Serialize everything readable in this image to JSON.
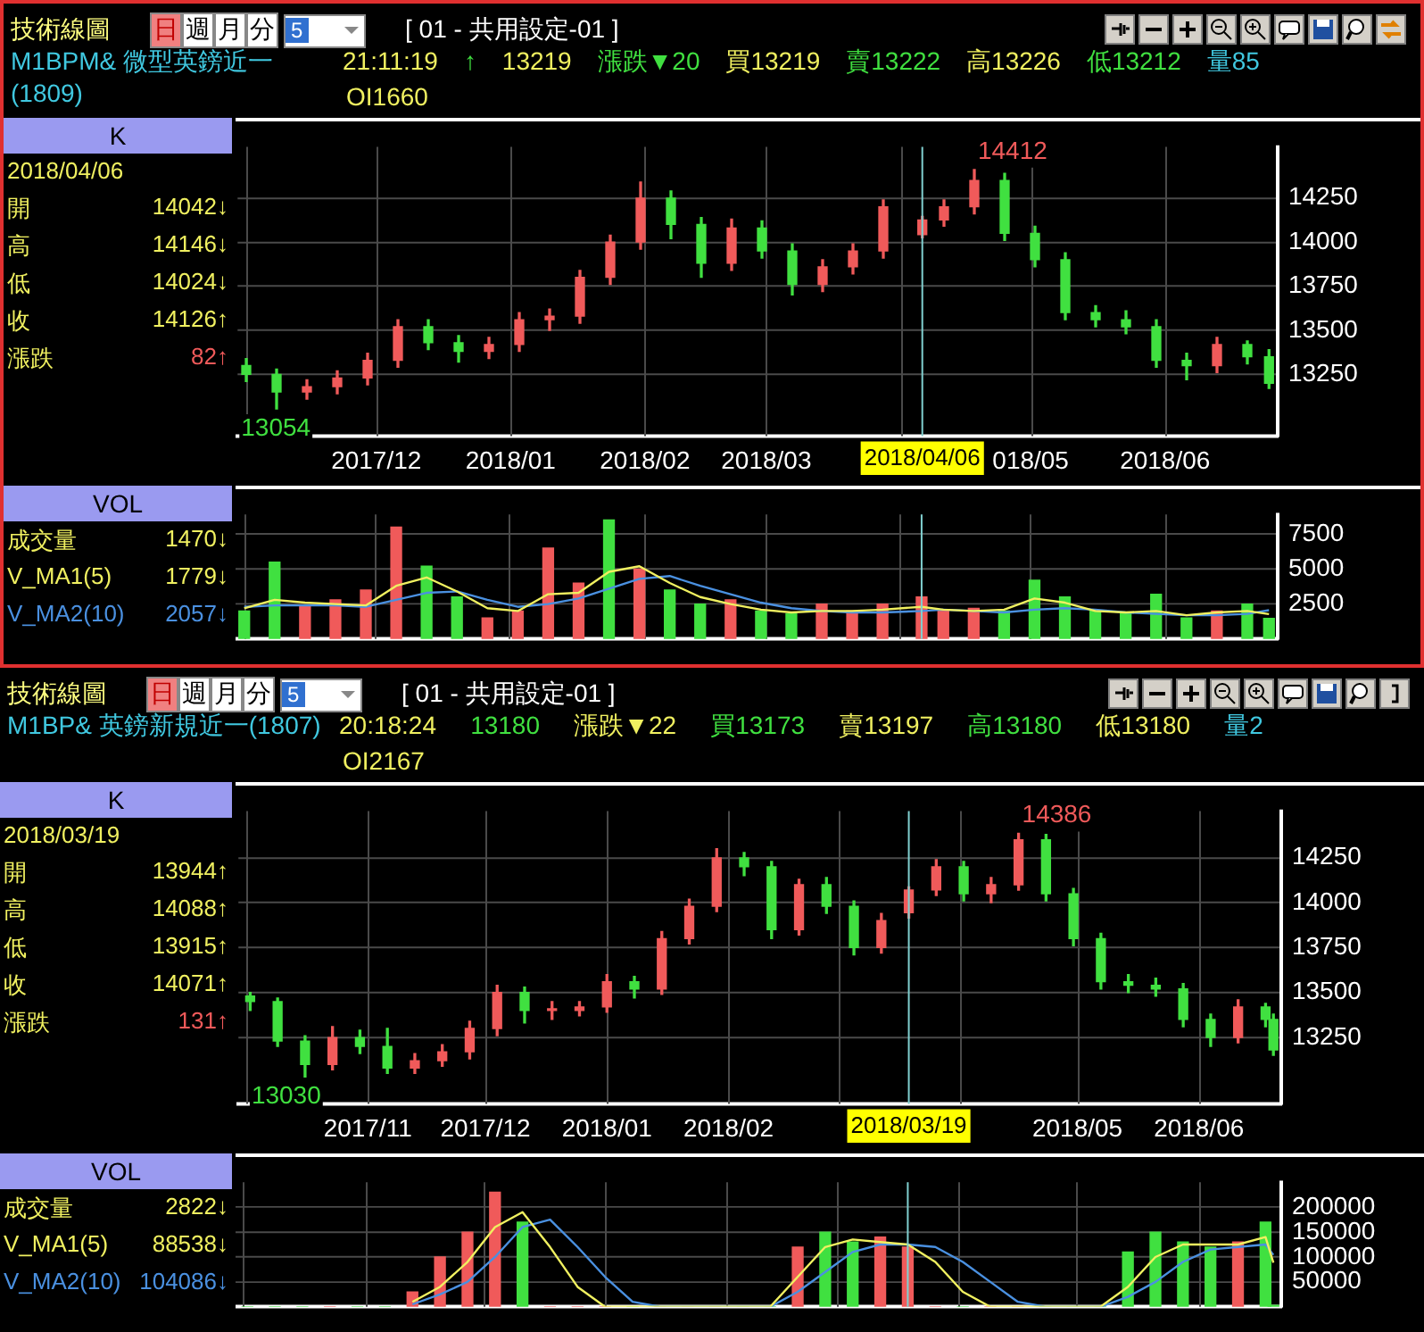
{
  "chart_data": [
    {
      "type": "other",
      "title": "技術線圖",
      "subtitle": "M1BPM&  微型英鎊近一(1809)",
      "annotations": [
        "日",
        "週",
        "月",
        "分",
        "5",
        "[ 01 - 共用設定-01 ]",
        "21:11:19",
        "↑",
        "13219",
        "漲跌▼20",
        "買13219",
        "賣13222",
        "高13226",
        "低13212",
        "量85",
        "OI1660"
      ]
    },
    {
      "type": "candlestick",
      "title": "K",
      "grid": true,
      "x": [
        "2017-11-01",
        "2017-11-08",
        "2017-11-15",
        "2017-11-22",
        "2017-11-29",
        "2017-12-06",
        "2017-12-13",
        "2017-12-20",
        "2017-12-27",
        "2018-01-03",
        "2018-01-10",
        "2018-01-17",
        "2018-01-24",
        "2018-01-31",
        "2018-02-07",
        "2018-02-14",
        "2018-02-21",
        "2018-02-28",
        "2018-03-07",
        "2018-03-14",
        "2018-03-21",
        "2018-03-28",
        "2018-04-06",
        "2018-04-11",
        "2018-04-18",
        "2018-04-25",
        "2018-05-02",
        "2018-05-09",
        "2018-05-16",
        "2018-05-23",
        "2018-05-30",
        "2018-06-06",
        "2018-06-13",
        "2018-06-20",
        "2018-06-25"
      ],
      "ohlc": [
        [
          13300,
          13340,
          13210,
          13250
        ],
        [
          13250,
          13280,
          13054,
          13150
        ],
        [
          13150,
          13220,
          13110,
          13180
        ],
        [
          13180,
          13270,
          13140,
          13230
        ],
        [
          13230,
          13370,
          13190,
          13330
        ],
        [
          13330,
          13560,
          13290,
          13520
        ],
        [
          13520,
          13560,
          13390,
          13430
        ],
        [
          13430,
          13470,
          13320,
          13380
        ],
        [
          13380,
          13460,
          13340,
          13420
        ],
        [
          13420,
          13600,
          13380,
          13560
        ],
        [
          13560,
          13620,
          13500,
          13580
        ],
        [
          13580,
          13840,
          13540,
          13800
        ],
        [
          13800,
          14040,
          13760,
          14000
        ],
        [
          14000,
          14340,
          13960,
          14250
        ],
        [
          14250,
          14290,
          14020,
          14100
        ],
        [
          14100,
          14140,
          13800,
          13880
        ],
        [
          13880,
          14130,
          13840,
          14080
        ],
        [
          14080,
          14120,
          13910,
          13950
        ],
        [
          13950,
          13990,
          13700,
          13760
        ],
        [
          13760,
          13900,
          13720,
          13860
        ],
        [
          13860,
          13990,
          13820,
          13950
        ],
        [
          13950,
          14240,
          13910,
          14200
        ],
        [
          14042,
          14146,
          14024,
          14126
        ],
        [
          14126,
          14240,
          14090,
          14200
        ],
        [
          14200,
          14412,
          14160,
          14350
        ],
        [
          14350,
          14390,
          14010,
          14050
        ],
        [
          14050,
          14090,
          13860,
          13900
        ],
        [
          13900,
          13940,
          13560,
          13600
        ],
        [
          13600,
          13640,
          13520,
          13560
        ],
        [
          13560,
          13610,
          13480,
          13520
        ],
        [
          13520,
          13560,
          13290,
          13330
        ],
        [
          13330,
          13370,
          13220,
          13300
        ],
        [
          13300,
          13460,
          13260,
          13420
        ],
        [
          13420,
          13440,
          13310,
          13350
        ],
        [
          13350,
          13390,
          13170,
          13200
        ]
      ],
      "colors": [
        "#40e040",
        "#40e040",
        "#f05a5a",
        "#f05a5a",
        "#f05a5a",
        "#f05a5a",
        "#40e040",
        "#40e040",
        "#f05a5a",
        "#f05a5a",
        "#f05a5a",
        "#f05a5a",
        "#f05a5a",
        "#f05a5a",
        "#40e040",
        "#40e040",
        "#f05a5a",
        "#40e040",
        "#40e040",
        "#f05a5a",
        "#f05a5a",
        "#f05a5a",
        "#f05a5a",
        "#f05a5a",
        "#f05a5a",
        "#40e040",
        "#40e040",
        "#40e040",
        "#40e040",
        "#40e040",
        "#40e040",
        "#40e040",
        "#f05a5a",
        "#40e040",
        "#40e040"
      ],
      "xlim": [
        "2017-10-30",
        "2018-06-27"
      ],
      "xticks": [
        {
          "value": "2017-11-01",
          "label": null
        },
        {
          "value": "2017-12-01",
          "label": "2017/12"
        },
        {
          "value": "2018-01-01",
          "label": "2018/01"
        },
        {
          "value": "2018-02-01",
          "label": "2018/02"
        },
        {
          "value": "2018-03-01",
          "label": "2018/03"
        },
        {
          "value": "2018-04-01",
          "label": null
        },
        {
          "value": "2018-05-01",
          "label": "018/05"
        },
        {
          "value": "2018-06-01",
          "label": "2018/06"
        }
      ],
      "ylim": [
        12900,
        14540
      ],
      "yticks": [
        13250,
        13500,
        13750,
        14000,
        14250
      ],
      "ref_lines": [
        {
          "axis": "x",
          "value": "2018-04-06",
          "label": "2018/04/06",
          "color": "#80d0d0"
        }
      ],
      "annotations": [
        "2018/04/06",
        "開",
        "14042↓",
        "高",
        "14146↓",
        "低",
        "14024↓",
        "收",
        "14126↑",
        "漲跌",
        "82↑",
        {
          "text": "14412",
          "x": "2018-04-18",
          "y": 14412
        },
        {
          "text": "13054",
          "x": "2017-11-08",
          "y": 13054
        }
      ]
    },
    {
      "type": "bar",
      "title": "VOL",
      "grid": true,
      "legend": "left",
      "tick_labels": "y",
      "x": [
        "2017-11-01",
        "2017-11-08",
        "2017-11-15",
        "2017-11-22",
        "2017-11-29",
        "2017-12-06",
        "2017-12-13",
        "2017-12-20",
        "2017-12-27",
        "2018-01-03",
        "2018-01-10",
        "2018-01-17",
        "2018-01-24",
        "2018-01-31",
        "2018-02-07",
        "2018-02-14",
        "2018-02-21",
        "2018-02-28",
        "2018-03-07",
        "2018-03-14",
        "2018-03-21",
        "2018-03-28",
        "2018-04-06",
        "2018-04-11",
        "2018-04-18",
        "2018-04-25",
        "2018-05-02",
        "2018-05-09",
        "2018-05-16",
        "2018-05-23",
        "2018-05-30",
        "2018-06-06",
        "2018-06-13",
        "2018-06-20",
        "2018-06-25"
      ],
      "series": [
        {
          "type": "bar",
          "values": [
            2000,
            5500,
            2400,
            2800,
            3500,
            8000,
            5200,
            3000,
            1500,
            2000,
            6500,
            4000,
            8500,
            5000,
            3500,
            2500,
            2800,
            2000,
            1800,
            2500,
            2000,
            2500,
            3000,
            2000,
            2200,
            2000,
            4200,
            3000,
            2000,
            1800,
            3200,
            1500,
            2000,
            2500,
            1470
          ],
          "colors": [
            "#40e040",
            "#40e040",
            "#f05a5a",
            "#f05a5a",
            "#f05a5a",
            "#f05a5a",
            "#40e040",
            "#40e040",
            "#f05a5a",
            "#f05a5a",
            "#f05a5a",
            "#f05a5a",
            "#40e040",
            "#f05a5a",
            "#40e040",
            "#40e040",
            "#f05a5a",
            "#40e040",
            "#40e040",
            "#f05a5a",
            "#f05a5a",
            "#f05a5a",
            "#f05a5a",
            "#f05a5a",
            "#f05a5a",
            "#40e040",
            "#40e040",
            "#40e040",
            "#40e040",
            "#40e040",
            "#40e040",
            "#40e040",
            "#f05a5a",
            "#40e040",
            "#40e040"
          ]
        },
        {
          "name": "V_MA1(5)",
          "type": "line",
          "color": "#f0f060",
          "values": [
            2200,
            2800,
            2600,
            2500,
            2400,
            3800,
            4400,
            3400,
            2200,
            2000,
            3200,
            3300,
            4800,
            5200,
            4000,
            3000,
            2500,
            2100,
            1900,
            2000,
            2000,
            2100,
            2300,
            2100,
            2000,
            2100,
            2900,
            2600,
            2000,
            1900,
            2000,
            1700,
            1900,
            2000,
            1779
          ]
        },
        {
          "name": "V_MA2(10)",
          "type": "line",
          "color": "#4a90e0",
          "values": [
            2300,
            2400,
            2400,
            2400,
            2300,
            2800,
            3300,
            3400,
            2800,
            2300,
            2500,
            2900,
            3600,
            4300,
            4500,
            3800,
            3200,
            2600,
            2200,
            2000,
            1900,
            1900,
            2000,
            2100,
            2000,
            1900,
            2100,
            2200,
            2100,
            1900,
            1800,
            1700,
            1700,
            1800,
            2057
          ]
        }
      ],
      "xlim": [
        "2017-10-30",
        "2018-06-27"
      ],
      "xticks": [
        {
          "value": "2017-11-01",
          "label": null
        },
        {
          "value": "2017-12-01",
          "label": null
        },
        {
          "value": "2018-01-01",
          "label": null
        },
        {
          "value": "2018-02-01",
          "label": null
        },
        {
          "value": "2018-03-01",
          "label": null
        },
        {
          "value": "2018-04-01",
          "label": null
        },
        {
          "value": "2018-05-01",
          "label": null
        },
        {
          "value": "2018-06-01",
          "label": null
        }
      ],
      "ylim": [
        0,
        8900
      ],
      "yticks": [
        2500,
        5000,
        7500
      ],
      "ref_lines": [
        {
          "axis": "x",
          "value": "2018-04-06",
          "color": "#80d0d0"
        }
      ],
      "annotations": [
        "成交量",
        "1470↓",
        "1779↓",
        "2057↓"
      ]
    },
    {
      "type": "other",
      "title": "技術線圖",
      "subtitle": "M1BP&  英鎊新規近一(1807)",
      "annotations": [
        "日",
        "週",
        "月",
        "分",
        "5",
        "[ 01 - 共用設定-01 ]",
        "20:18:24",
        "13180",
        "漲跌▼22",
        "買13173",
        "賣13197",
        "高13180",
        "低13180",
        "量2",
        "OI2167"
      ]
    },
    {
      "type": "candlestick",
      "title": "K",
      "grid": true,
      "x": [
        "2017-10-02",
        "2017-10-09",
        "2017-10-16",
        "2017-10-23",
        "2017-10-30",
        "2017-11-06",
        "2017-11-13",
        "2017-11-20",
        "2017-11-27",
        "2017-12-04",
        "2017-12-11",
        "2017-12-18",
        "2017-12-25",
        "2018-01-01",
        "2018-01-08",
        "2018-01-15",
        "2018-01-22",
        "2018-01-29",
        "2018-02-05",
        "2018-02-12",
        "2018-02-19",
        "2018-02-26",
        "2018-03-05",
        "2018-03-12",
        "2018-03-19",
        "2018-03-26",
        "2018-04-02",
        "2018-04-09",
        "2018-04-16",
        "2018-04-23",
        "2018-04-30",
        "2018-05-07",
        "2018-05-14",
        "2018-05-21",
        "2018-05-28",
        "2018-06-04",
        "2018-06-11",
        "2018-06-18",
        "2018-06-20"
      ],
      "ohlc": [
        [
          13480,
          13500,
          13400,
          13450
        ],
        [
          13450,
          13470,
          13200,
          13230
        ],
        [
          13230,
          13260,
          13030,
          13100
        ],
        [
          13100,
          13310,
          13070,
          13250
        ],
        [
          13250,
          13290,
          13160,
          13200
        ],
        [
          13200,
          13300,
          13050,
          13080
        ],
        [
          13080,
          13160,
          13050,
          13120
        ],
        [
          13120,
          13210,
          13090,
          13170
        ],
        [
          13170,
          13340,
          13130,
          13300
        ],
        [
          13300,
          13540,
          13260,
          13500
        ],
        [
          13500,
          13530,
          13330,
          13400
        ],
        [
          13400,
          13450,
          13350,
          13400
        ],
        [
          13400,
          13450,
          13370,
          13420
        ],
        [
          13420,
          13600,
          13390,
          13560
        ],
        [
          13560,
          13590,
          13470,
          13520
        ],
        [
          13520,
          13840,
          13490,
          13800
        ],
        [
          13800,
          14020,
          13770,
          13980
        ],
        [
          13980,
          14300,
          13950,
          14250
        ],
        [
          14250,
          14280,
          14150,
          14200
        ],
        [
          14200,
          14230,
          13800,
          13850
        ],
        [
          13850,
          14130,
          13820,
          14100
        ],
        [
          14100,
          14140,
          13940,
          13980
        ],
        [
          13980,
          14010,
          13710,
          13750
        ],
        [
          13750,
          13940,
          13720,
          13900
        ],
        [
          13944,
          14088,
          13915,
          14071
        ],
        [
          14071,
          14240,
          14040,
          14200
        ],
        [
          14200,
          14230,
          14010,
          14050
        ],
        [
          14050,
          14140,
          14000,
          14100
        ],
        [
          14100,
          14386,
          14070,
          14350
        ],
        [
          14350,
          14380,
          14010,
          14050
        ],
        [
          14050,
          14080,
          13760,
          13800
        ],
        [
          13800,
          13830,
          13520,
          13560
        ],
        [
          13560,
          13600,
          13500,
          13540
        ],
        [
          13540,
          13580,
          13480,
          13520
        ],
        [
          13520,
          13550,
          13310,
          13350
        ],
        [
          13350,
          13380,
          13200,
          13250
        ],
        [
          13250,
          13460,
          13220,
          13420
        ],
        [
          13420,
          13440,
          13310,
          13350
        ],
        [
          13350,
          13380,
          13150,
          13180
        ]
      ],
      "colors": [
        "#40e040",
        "#40e040",
        "#40e040",
        "#f05a5a",
        "#40e040",
        "#40e040",
        "#f05a5a",
        "#f05a5a",
        "#f05a5a",
        "#f05a5a",
        "#40e040",
        "#f05a5a",
        "#f05a5a",
        "#f05a5a",
        "#40e040",
        "#f05a5a",
        "#f05a5a",
        "#f05a5a",
        "#40e040",
        "#40e040",
        "#f05a5a",
        "#40e040",
        "#40e040",
        "#f05a5a",
        "#f05a5a",
        "#f05a5a",
        "#40e040",
        "#f05a5a",
        "#f05a5a",
        "#40e040",
        "#40e040",
        "#40e040",
        "#40e040",
        "#40e040",
        "#40e040",
        "#40e040",
        "#f05a5a",
        "#40e040",
        "#40e040"
      ],
      "xlim": [
        "2017-09-29",
        "2018-06-22"
      ],
      "xticks": [
        {
          "value": "2017-10-01",
          "label": null
        },
        {
          "value": "2017-11-01",
          "label": "2017/11"
        },
        {
          "value": "2017-12-01",
          "label": "2017/12"
        },
        {
          "value": "2018-01-01",
          "label": "2018/01"
        },
        {
          "value": "2018-02-01",
          "label": "2018/02"
        },
        {
          "value": "2018-03-01",
          "label": null
        },
        {
          "value": "2018-04-01",
          "label": null
        },
        {
          "value": "2018-05-01",
          "label": "2018/05"
        },
        {
          "value": "2018-06-01",
          "label": "2018/06"
        }
      ],
      "ylim": [
        12880,
        14510
      ],
      "yticks": [
        13250,
        13500,
        13750,
        14000,
        14250
      ],
      "ref_lines": [
        {
          "axis": "x",
          "value": "2018-03-19",
          "label": "2018/03/19",
          "color": "#80d0d0"
        }
      ],
      "annotations": [
        "2018/03/19",
        "開",
        "13944↑",
        "高",
        "14088↑",
        "低",
        "13915↑",
        "收",
        "14071↑",
        "漲跌",
        "131↑",
        {
          "text": "14386",
          "x": "2018-04-16",
          "y": 14386
        },
        {
          "text": "13030",
          "x": "2017-10-16",
          "y": 13030
        }
      ]
    },
    {
      "type": "bar",
      "title": "VOL",
      "grid": true,
      "legend": "left",
      "tick_labels": "y",
      "x": [
        "2017-10-02",
        "2017-10-09",
        "2017-10-16",
        "2017-10-23",
        "2017-10-30",
        "2017-11-06",
        "2017-11-13",
        "2017-11-20",
        "2017-11-27",
        "2017-12-04",
        "2017-12-11",
        "2017-12-18",
        "2017-12-25",
        "2018-01-01",
        "2018-01-08",
        "2018-01-15",
        "2018-01-22",
        "2018-01-29",
        "2018-02-05",
        "2018-02-12",
        "2018-02-19",
        "2018-02-26",
        "2018-03-05",
        "2018-03-12",
        "2018-03-19",
        "2018-03-26",
        "2018-04-02",
        "2018-04-09",
        "2018-04-16",
        "2018-04-23",
        "2018-04-30",
        "2018-05-07",
        "2018-05-14",
        "2018-05-21",
        "2018-05-28",
        "2018-06-04",
        "2018-06-11",
        "2018-06-18",
        "2018-06-20"
      ],
      "series": [
        {
          "type": "bar",
          "values": [
            0,
            0,
            0,
            0,
            0,
            0,
            30000,
            100000,
            150000,
            230000,
            170000,
            0,
            0,
            0,
            0,
            0,
            0,
            0,
            0,
            0,
            120000,
            150000,
            130000,
            140000,
            120000,
            0,
            0,
            0,
            0,
            0,
            0,
            0,
            110000,
            150000,
            130000,
            120000,
            130000,
            170000,
            2822
          ],
          "colors": [
            "#40e040",
            "#40e040",
            "#40e040",
            "#f05a5a",
            "#40e040",
            "#40e040",
            "#f05a5a",
            "#f05a5a",
            "#f05a5a",
            "#f05a5a",
            "#40e040",
            "#f05a5a",
            "#f05a5a",
            "#f05a5a",
            "#40e040",
            "#f05a5a",
            "#f05a5a",
            "#f05a5a",
            "#40e040",
            "#40e040",
            "#f05a5a",
            "#40e040",
            "#40e040",
            "#f05a5a",
            "#f05a5a",
            "#f05a5a",
            "#40e040",
            "#f05a5a",
            "#f05a5a",
            "#40e040",
            "#40e040",
            "#40e040",
            "#40e040",
            "#40e040",
            "#40e040",
            "#40e040",
            "#f05a5a",
            "#40e040",
            "#40e040"
          ]
        },
        {
          "name": "V_MA1(5)",
          "type": "line",
          "color": "#f0f060",
          "values": [
            null,
            null,
            null,
            null,
            null,
            null,
            10000,
            40000,
            90000,
            160000,
            190000,
            120000,
            40000,
            0,
            0,
            0,
            0,
            0,
            0,
            0,
            60000,
            120000,
            135000,
            130000,
            125000,
            90000,
            30000,
            0,
            0,
            0,
            0,
            0,
            40000,
            100000,
            125000,
            125000,
            125000,
            140000,
            88538
          ]
        },
        {
          "name": "V_MA2(10)",
          "type": "line",
          "color": "#4a90e0",
          "values": [
            null,
            null,
            null,
            null,
            null,
            null,
            5000,
            25000,
            50000,
            100000,
            160000,
            175000,
            120000,
            60000,
            10000,
            0,
            0,
            0,
            0,
            0,
            30000,
            70000,
            110000,
            125000,
            125000,
            120000,
            90000,
            50000,
            10000,
            0,
            0,
            0,
            20000,
            50000,
            90000,
            115000,
            120000,
            125000,
            104086
          ]
        }
      ],
      "xlim": [
        "2017-09-29",
        "2018-06-22"
      ],
      "xticks": [
        {
          "value": "2017-10-01",
          "label": null
        },
        {
          "value": "2017-11-01",
          "label": null
        },
        {
          "value": "2017-12-01",
          "label": null
        },
        {
          "value": "2018-01-01",
          "label": null
        },
        {
          "value": "2018-02-01",
          "label": null
        },
        {
          "value": "2018-03-01",
          "label": null
        },
        {
          "value": "2018-04-01",
          "label": null
        },
        {
          "value": "2018-05-01",
          "label": null
        },
        {
          "value": "2018-06-01",
          "label": null
        }
      ],
      "ylim": [
        0,
        250000
      ],
      "yticks": [
        50000,
        100000,
        150000,
        200000
      ],
      "ref_lines": [
        {
          "axis": "x",
          "value": "2018-03-19",
          "color": "#80d0d0"
        }
      ],
      "annotations": [
        "成交量",
        "2822↓",
        "88538↓",
        "104086↓"
      ]
    }
  ]
}
